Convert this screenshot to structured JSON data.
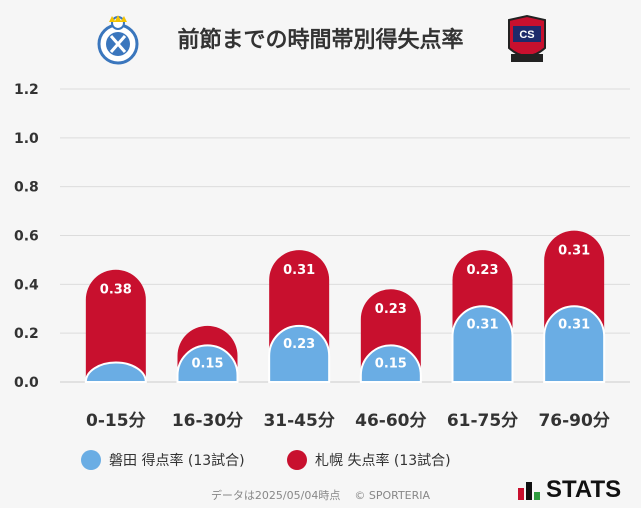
{
  "header": {
    "title": "前節までの時間帯別得失点率",
    "team_left": "磐田",
    "team_right": "札幌"
  },
  "colors": {
    "score": "#6aade4",
    "concede": "#c8102e",
    "grid": "#dcdcdc"
  },
  "chart_data": {
    "type": "bar",
    "stacked": true,
    "categories": [
      "0-15分",
      "16-30分",
      "31-45分",
      "46-60分",
      "61-75分",
      "76-90分"
    ],
    "series": [
      {
        "name": "磐田 得点率 (13試合)",
        "values": [
          0.08,
          0.15,
          0.23,
          0.15,
          0.31,
          0.31
        ],
        "labels": [
          "",
          "0.15",
          "0.23",
          "0.15",
          "0.31",
          "0.31"
        ]
      },
      {
        "name": "札幌 失点率 (13試合)",
        "values": [
          0.38,
          0.08,
          0.31,
          0.23,
          0.23,
          0.31
        ],
        "labels": [
          "0.38",
          "",
          "0.31",
          "0.23",
          "0.23",
          "0.31"
        ]
      }
    ],
    "ylim": [
      0,
      1.2
    ],
    "yticks": [
      "0.0",
      "0.2",
      "0.4",
      "0.6",
      "0.8",
      "1.0",
      "1.2"
    ],
    "grid": true,
    "legend": "bottom"
  },
  "footer": {
    "note": "データは2025/05/04時点",
    "copyright": "© SPORTERIA",
    "brand": "STATS"
  }
}
